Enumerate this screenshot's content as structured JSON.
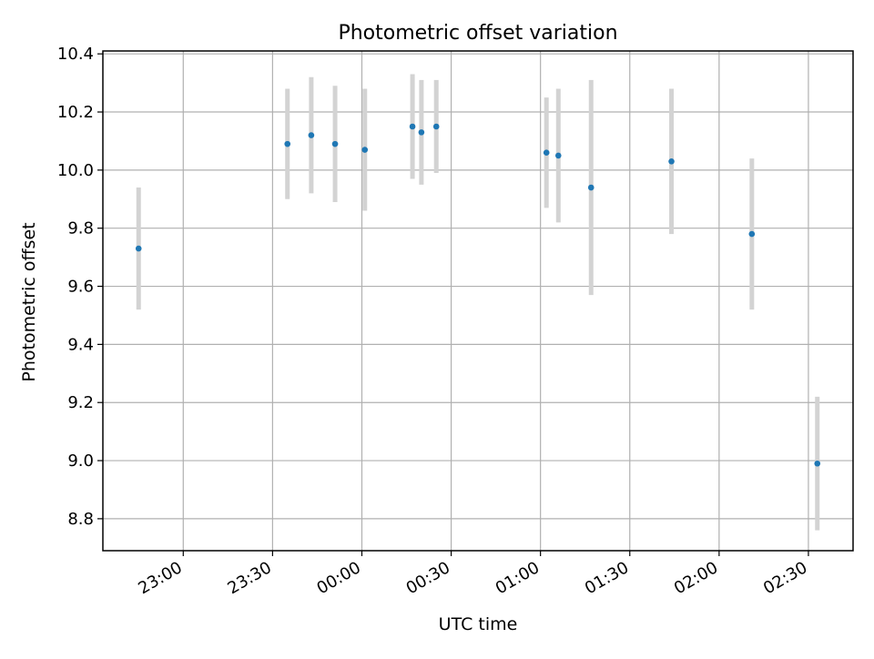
{
  "chart_data": {
    "type": "scatter",
    "title": "Photometric offset variation",
    "xlabel": "UTC time",
    "ylabel": "Photometric offset",
    "x_ticks": [
      "23:00",
      "23:30",
      "00:00",
      "00:30",
      "01:00",
      "01:30",
      "02:00",
      "02:30"
    ],
    "y_ticks": [
      "8.8",
      "9.0",
      "9.2",
      "9.4",
      "9.6",
      "9.8",
      "10.0",
      "10.2",
      "10.4"
    ],
    "x_unit": "minutes relative to 00:00 UTC",
    "xlim": [
      -87,
      165
    ],
    "ylim": [
      8.69,
      10.41
    ],
    "grid": true,
    "colors": {
      "points": "#1f77b4",
      "errorbars": "#d3d3d3",
      "grid": "#b0b0b0"
    },
    "points": [
      {
        "time": "22:45",
        "x": -75,
        "y": 9.73,
        "err": 0.21
      },
      {
        "time": "23:35",
        "x": -25,
        "y": 10.09,
        "err": 0.19
      },
      {
        "time": "23:44",
        "x": -17,
        "y": 10.12,
        "err": 0.2
      },
      {
        "time": "23:52",
        "x": -9,
        "y": 10.09,
        "err": 0.2
      },
      {
        "time": "00:01",
        "x": 1,
        "y": 10.07,
        "err": 0.21
      },
      {
        "time": "00:17",
        "x": 17,
        "y": 10.15,
        "err": 0.18
      },
      {
        "time": "00:20",
        "x": 20,
        "y": 10.13,
        "err": 0.18
      },
      {
        "time": "00:24",
        "x": 25,
        "y": 10.15,
        "err": 0.16
      },
      {
        "time": "01:01",
        "x": 62,
        "y": 10.06,
        "err": 0.19
      },
      {
        "time": "01:06",
        "x": 66,
        "y": 10.05,
        "err": 0.23
      },
      {
        "time": "01:16",
        "x": 77,
        "y": 9.94,
        "err": 0.37
      },
      {
        "time": "01:44",
        "x": 104,
        "y": 10.03,
        "err": 0.25
      },
      {
        "time": "02:11",
        "x": 131,
        "y": 9.78,
        "err": 0.26
      },
      {
        "time": "02:32",
        "x": 153,
        "y": 8.99,
        "err": 0.23
      }
    ]
  }
}
